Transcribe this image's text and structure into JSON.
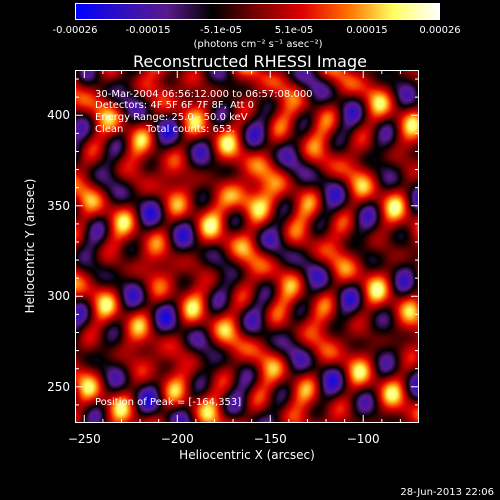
{
  "colorbar": {
    "ticks": [
      "-0.00026",
      "-0.00015",
      "-5.1e-05",
      "5.1e-05",
      "0.00015",
      "0.00026"
    ],
    "unit": "(photons cm⁻² s⁻¹ asec⁻²)",
    "colors": [
      "#0000ff",
      "#3010c0",
      "#5a1a8c",
      "#000000",
      "#7a0000",
      "#e00000",
      "#ff7000",
      "#ffff60",
      "#ffffff"
    ]
  },
  "chart_data": {
    "type": "heatmap",
    "title": "Reconstructed RHESSI Image",
    "xlabel": "Heliocentric X (arcsec)",
    "ylabel": "Heliocentric Y (arcsec)",
    "xlim": [
      -255,
      -70
    ],
    "ylim": [
      230,
      425
    ],
    "xticks": [
      -250,
      -200,
      -150,
      -100
    ],
    "yticks": [
      250,
      300,
      350,
      400
    ],
    "value_range": [
      -0.00026,
      0.00026
    ],
    "peak": [
      -164,
      353
    ],
    "grid": false,
    "annotations": {
      "time_range": "30-Mar-2004 06:56:12.000 to 06:57:08.000",
      "detectors": "Detectors: 4F 5F 6F 7F 8F, Att 0",
      "energy": "Energy Range: 25.0 - 50.0 keV",
      "clean": "Clean",
      "counts": "Total counts: 653.",
      "peak_label": "Position of Peak = [-164,353]"
    }
  },
  "footer": {
    "timestamp": "28-Jun-2013 22:06"
  }
}
